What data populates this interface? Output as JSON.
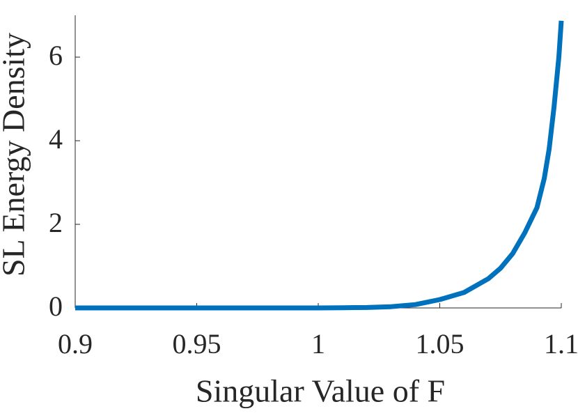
{
  "chart_data": {
    "type": "line",
    "x_label": "Singular Value of F",
    "y_label": "SL Energy Density",
    "x": [
      0.9,
      0.92,
      0.94,
      0.96,
      0.98,
      1.0,
      1.01,
      1.02,
      1.03,
      1.04,
      1.05,
      1.06,
      1.07,
      1.075,
      1.08,
      1.085,
      1.09,
      1.093,
      1.095,
      1.097,
      1.099,
      1.1
    ],
    "series": [
      {
        "color": "#0072bd",
        "values": [
          0,
          0,
          0,
          0,
          0,
          0,
          0.005,
          0.01,
          0.03,
          0.08,
          0.2,
          0.37,
          0.7,
          0.95,
          1.3,
          1.8,
          2.4,
          3.1,
          3.8,
          4.8,
          6.0,
          6.87
        ]
      }
    ],
    "xlim": [
      0.9,
      1.1
    ],
    "xticks": [
      0.9,
      0.95,
      1,
      1.05,
      1.1
    ],
    "ylim": [
      0,
      7
    ],
    "yticks": [
      0,
      2,
      4,
      6
    ],
    "grid": false
  }
}
